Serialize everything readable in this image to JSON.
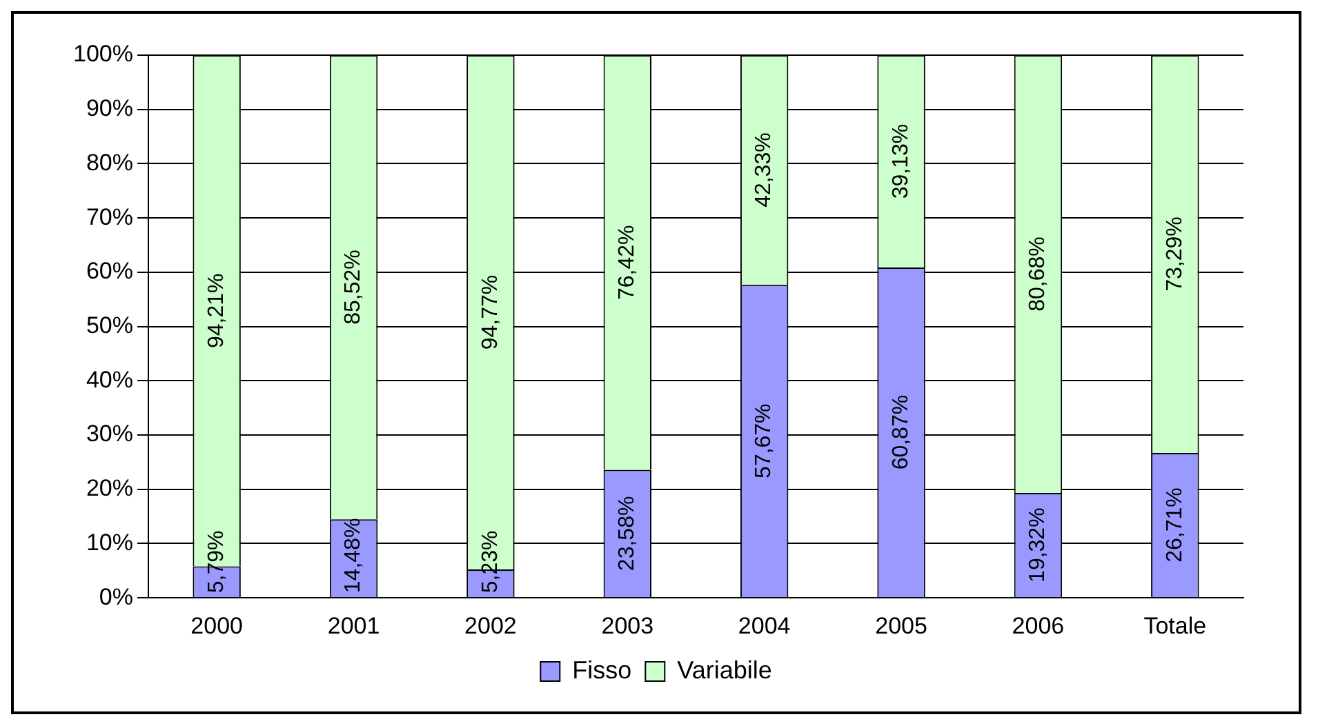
{
  "chart_data": {
    "type": "bar",
    "stacked": true,
    "categories": [
      "2000",
      "2001",
      "2002",
      "2003",
      "2004",
      "2005",
      "2006",
      "Totale"
    ],
    "series": [
      {
        "name": "Fisso",
        "color": "#9999ff",
        "values": [
          5.79,
          14.48,
          5.23,
          23.58,
          57.67,
          60.87,
          19.32,
          26.71
        ],
        "value_labels": [
          "5,79%",
          "14,48%",
          "5,23%",
          "23,58%",
          "57,67%",
          "60,87%",
          "19,32%",
          "26,71%"
        ]
      },
      {
        "name": "Variabile",
        "color": "#ccffcc",
        "values": [
          94.21,
          85.52,
          94.77,
          76.42,
          42.33,
          39.13,
          80.68,
          73.29
        ],
        "value_labels": [
          "94,21%",
          "85,52%",
          "94,77%",
          "76,42%",
          "42,33%",
          "39,13%",
          "80,68%",
          "73,29%"
        ]
      }
    ],
    "ylim": [
      0,
      100
    ],
    "yticks": [
      {
        "value": 0,
        "label": "0%"
      },
      {
        "value": 10,
        "label": "10%"
      },
      {
        "value": 20,
        "label": "20%"
      },
      {
        "value": 30,
        "label": "30%"
      },
      {
        "value": 40,
        "label": "40%"
      },
      {
        "value": 50,
        "label": "50%"
      },
      {
        "value": 60,
        "label": "60%"
      },
      {
        "value": 70,
        "label": "70%"
      },
      {
        "value": 80,
        "label": "80%"
      },
      {
        "value": 90,
        "label": "90%"
      },
      {
        "value": 100,
        "label": "100%"
      }
    ],
    "grid": "y",
    "legend": "bottom"
  }
}
